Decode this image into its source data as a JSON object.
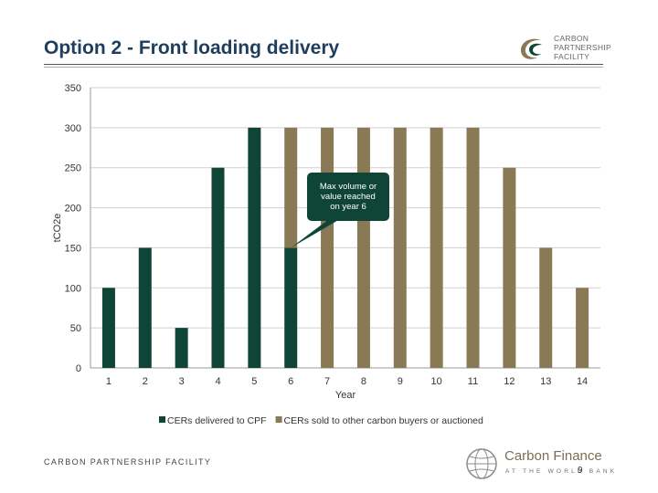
{
  "slide": {
    "title": "Option 2 - Front loading delivery",
    "logo_top_lines": [
      "CARBON",
      "PARTNERSHIP",
      "FACILITY"
    ],
    "footer_text": "CARBON PARTNERSHIP FACILITY",
    "logo_bottom_name": "Carbon Finance",
    "logo_bottom_tagline": "AT THE WORLD BANK",
    "page_number": "9"
  },
  "colors": {
    "title": "#1f3d5c",
    "series_cpf": "#0f4536",
    "series_other": "#8a7955",
    "callout": "#0f4536",
    "grid": "#d0d0d0"
  },
  "chart_data": {
    "type": "bar",
    "stacked": true,
    "xlabel": "Year",
    "ylabel": "tCO2e",
    "ylim": [
      0,
      350
    ],
    "yticks": [
      0,
      50,
      100,
      150,
      200,
      250,
      300,
      350
    ],
    "categories": [
      "1",
      "2",
      "3",
      "4",
      "5",
      "6",
      "7",
      "8",
      "9",
      "10",
      "11",
      "12",
      "13",
      "14"
    ],
    "series": [
      {
        "name": "CERs delivered to CPF",
        "color": "#0f4536",
        "values": [
          100,
          150,
          50,
          250,
          300,
          150,
          0,
          0,
          0,
          0,
          0,
          0,
          0,
          0
        ]
      },
      {
        "name": "CERs sold to other carbon buyers or auctioned",
        "color": "#8a7955",
        "values": [
          0,
          0,
          0,
          0,
          0,
          150,
          300,
          300,
          300,
          300,
          300,
          250,
          150,
          100
        ]
      }
    ],
    "grid": true,
    "legend_position": "bottom",
    "annotations": [
      {
        "text": [
          "Max volume or",
          "value reached",
          "on year 6"
        ],
        "category": "6",
        "value": 150
      }
    ]
  }
}
